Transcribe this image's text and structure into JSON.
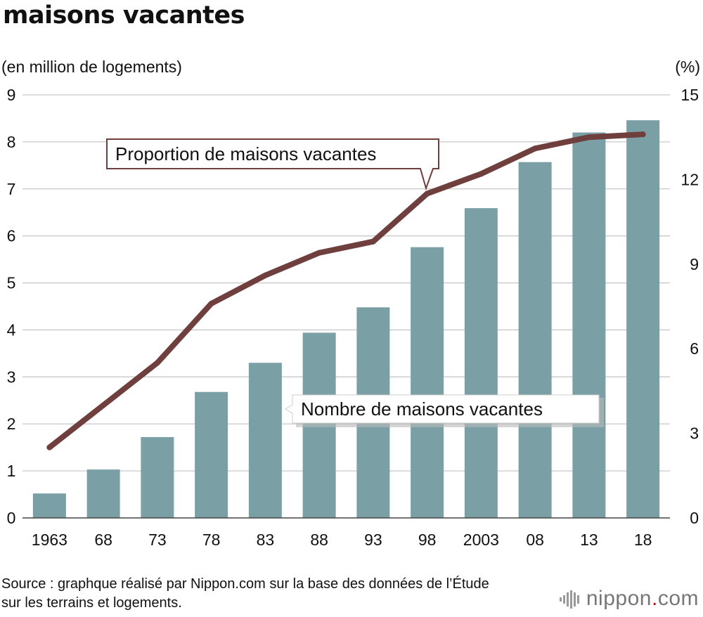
{
  "title": "maisons vacantes",
  "units": {
    "left": "(en million de logements)",
    "right": "(%)"
  },
  "chart_data": {
    "type": "bar+line",
    "categories": [
      "1963",
      "68",
      "73",
      "78",
      "83",
      "88",
      "93",
      "98",
      "2003",
      "08",
      "13",
      "18"
    ],
    "series": [
      {
        "name": "Nombre de maisons vacantes",
        "type": "bar",
        "axis": "left",
        "values": [
          0.52,
          1.03,
          1.72,
          2.68,
          3.3,
          3.94,
          4.48,
          5.76,
          6.59,
          7.57,
          8.2,
          8.46
        ]
      },
      {
        "name": "Proportion de maisons vacantes",
        "type": "line",
        "axis": "right",
        "values": [
          2.5,
          4.0,
          5.5,
          7.6,
          8.6,
          9.4,
          9.8,
          11.5,
          12.2,
          13.1,
          13.5,
          13.6
        ]
      }
    ],
    "y_left": {
      "min": 0,
      "max": 9,
      "ticks": [
        0,
        1,
        2,
        3,
        4,
        5,
        6,
        7,
        8,
        9
      ]
    },
    "y_right": {
      "min": 0,
      "max": 15,
      "ticks": [
        0,
        3,
        6,
        9,
        12,
        15
      ]
    },
    "grid": true,
    "colors": {
      "bar": "#7aa0a5",
      "line": "#6e3f3c",
      "grid": "#c8c8c8",
      "callout_border": "#6e3f3c"
    }
  },
  "source": "Source : graphque réalisé par Nippon.com sur la base des données de l’Étude sur les terrains et logements.",
  "logo": {
    "name": "nippon",
    "dot": ".",
    "suffix": "com",
    "icon": "nippon-logo-icon"
  }
}
